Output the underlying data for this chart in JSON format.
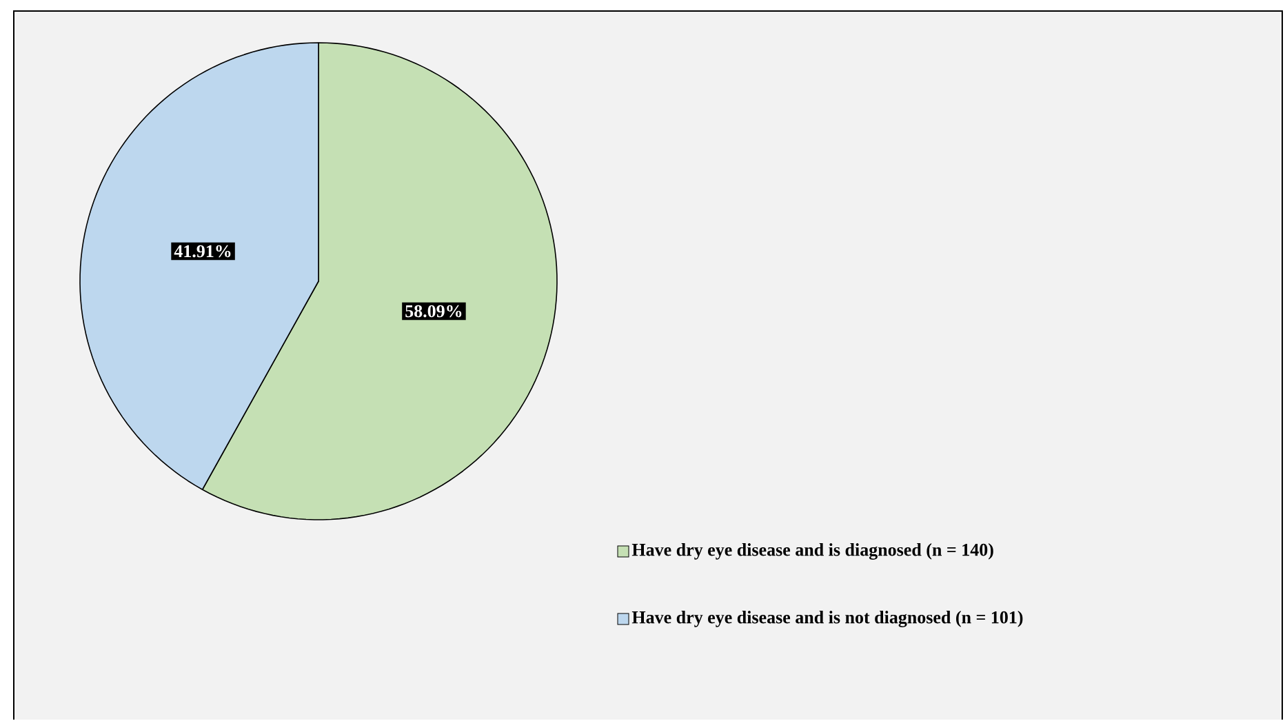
{
  "chart_data": {
    "type": "pie",
    "categories": [
      "Have dry eye disease and is diagnosed (n = 140)",
      "Have dry eye disease and is not diagnosed (n = 101)"
    ],
    "values": [
      58.09,
      41.91
    ],
    "value_labels": [
      "58.09%",
      "41.91%"
    ],
    "colors": [
      "#c5e0b4",
      "#bdd7ee"
    ],
    "legend": "right"
  }
}
